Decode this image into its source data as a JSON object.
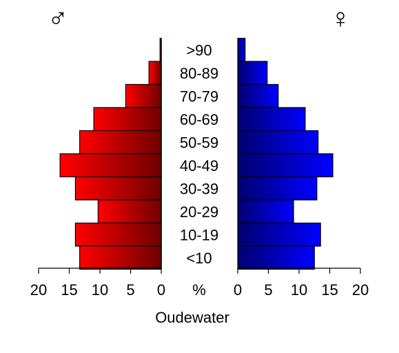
{
  "chart_data": {
    "type": "bar",
    "title": "Oudewater",
    "unit_label": "%",
    "male_symbol": "♂",
    "female_symbol": "♀",
    "categories": [
      ">90",
      "80-89",
      "70-79",
      "60-69",
      "50-59",
      "40-49",
      "30-39",
      "20-29",
      "10-19",
      "<10"
    ],
    "series": [
      {
        "values": [
          0.2,
          2.0,
          5.8,
          11.0,
          13.3,
          16.5,
          14.0,
          10.3,
          14.0,
          13.3
        ]
      },
      {
        "values": [
          1.2,
          4.8,
          6.6,
          11.0,
          13.1,
          15.5,
          12.9,
          9.1,
          13.5,
          12.5
        ]
      }
    ],
    "xlim": [
      0,
      20
    ],
    "x_ticks": [
      "0",
      "5",
      "10",
      "15",
      "20"
    ],
    "colors": {
      "male_light": "#ff0000",
      "male_dark": "#6e0000",
      "female_light": "#0000ff",
      "female_dark": "#00006e",
      "outline": "#000000"
    }
  }
}
